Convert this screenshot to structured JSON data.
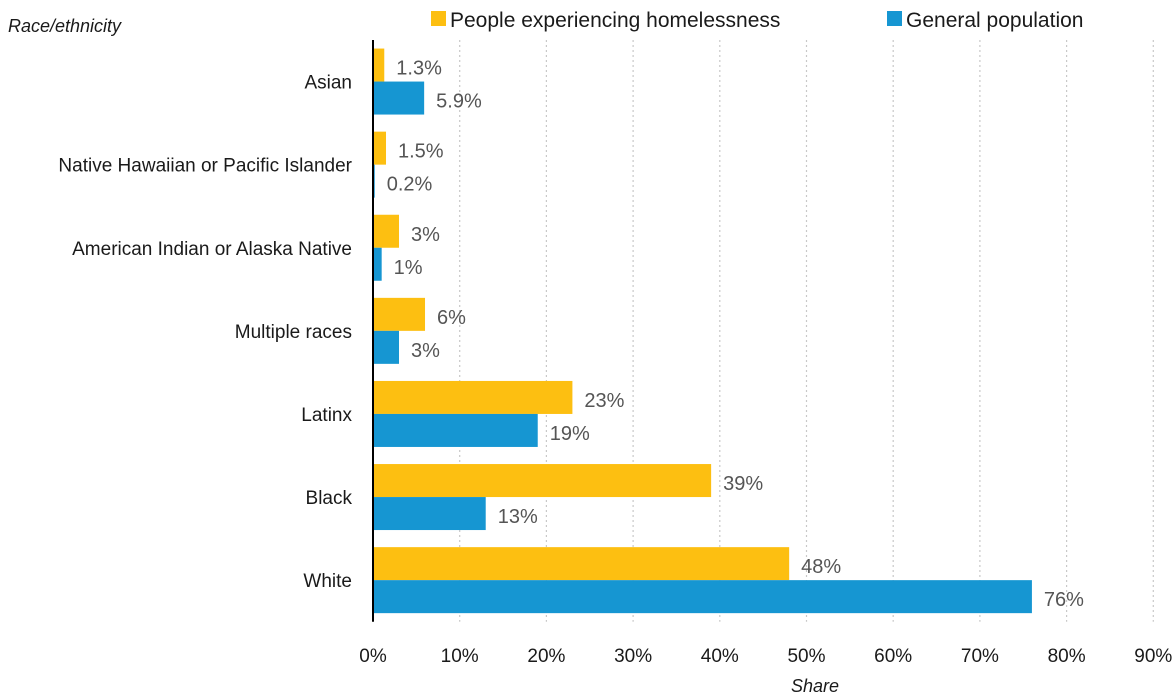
{
  "chart_data": {
    "type": "bar",
    "orientation": "horizontal",
    "ylabel": "Race/ethnicity",
    "xlabel": "Share",
    "categories": [
      "Asian",
      "Native Hawaiian or Pacific Islander",
      "American Indian or Alaska Native",
      "Multiple races",
      "Latinx",
      "Black",
      "White"
    ],
    "series": [
      {
        "name": "People experiencing homelessness",
        "color": "#FDBF11",
        "values": [
          1.3,
          1.5,
          3,
          6,
          23,
          39,
          48
        ],
        "labels": [
          "1.3%",
          "1.5%",
          "3%",
          "6%",
          "23%",
          "39%",
          "48%"
        ]
      },
      {
        "name": "General population",
        "color": "#1696D2",
        "values": [
          5.9,
          0.2,
          1,
          3,
          19,
          13,
          76
        ],
        "labels": [
          "5.9%",
          "0.2%",
          "1%",
          "3%",
          "19%",
          "13%",
          "76%"
        ]
      }
    ],
    "xlim": [
      0,
      90
    ],
    "xticks": [
      0,
      10,
      20,
      30,
      40,
      50,
      60,
      70,
      80,
      90
    ],
    "xtick_labels": [
      "0%",
      "10%",
      "20%",
      "30%",
      "40%",
      "50%",
      "60%",
      "70%",
      "80%",
      "90%"
    ],
    "grid": "vertical dotted",
    "legend_position": "top"
  }
}
